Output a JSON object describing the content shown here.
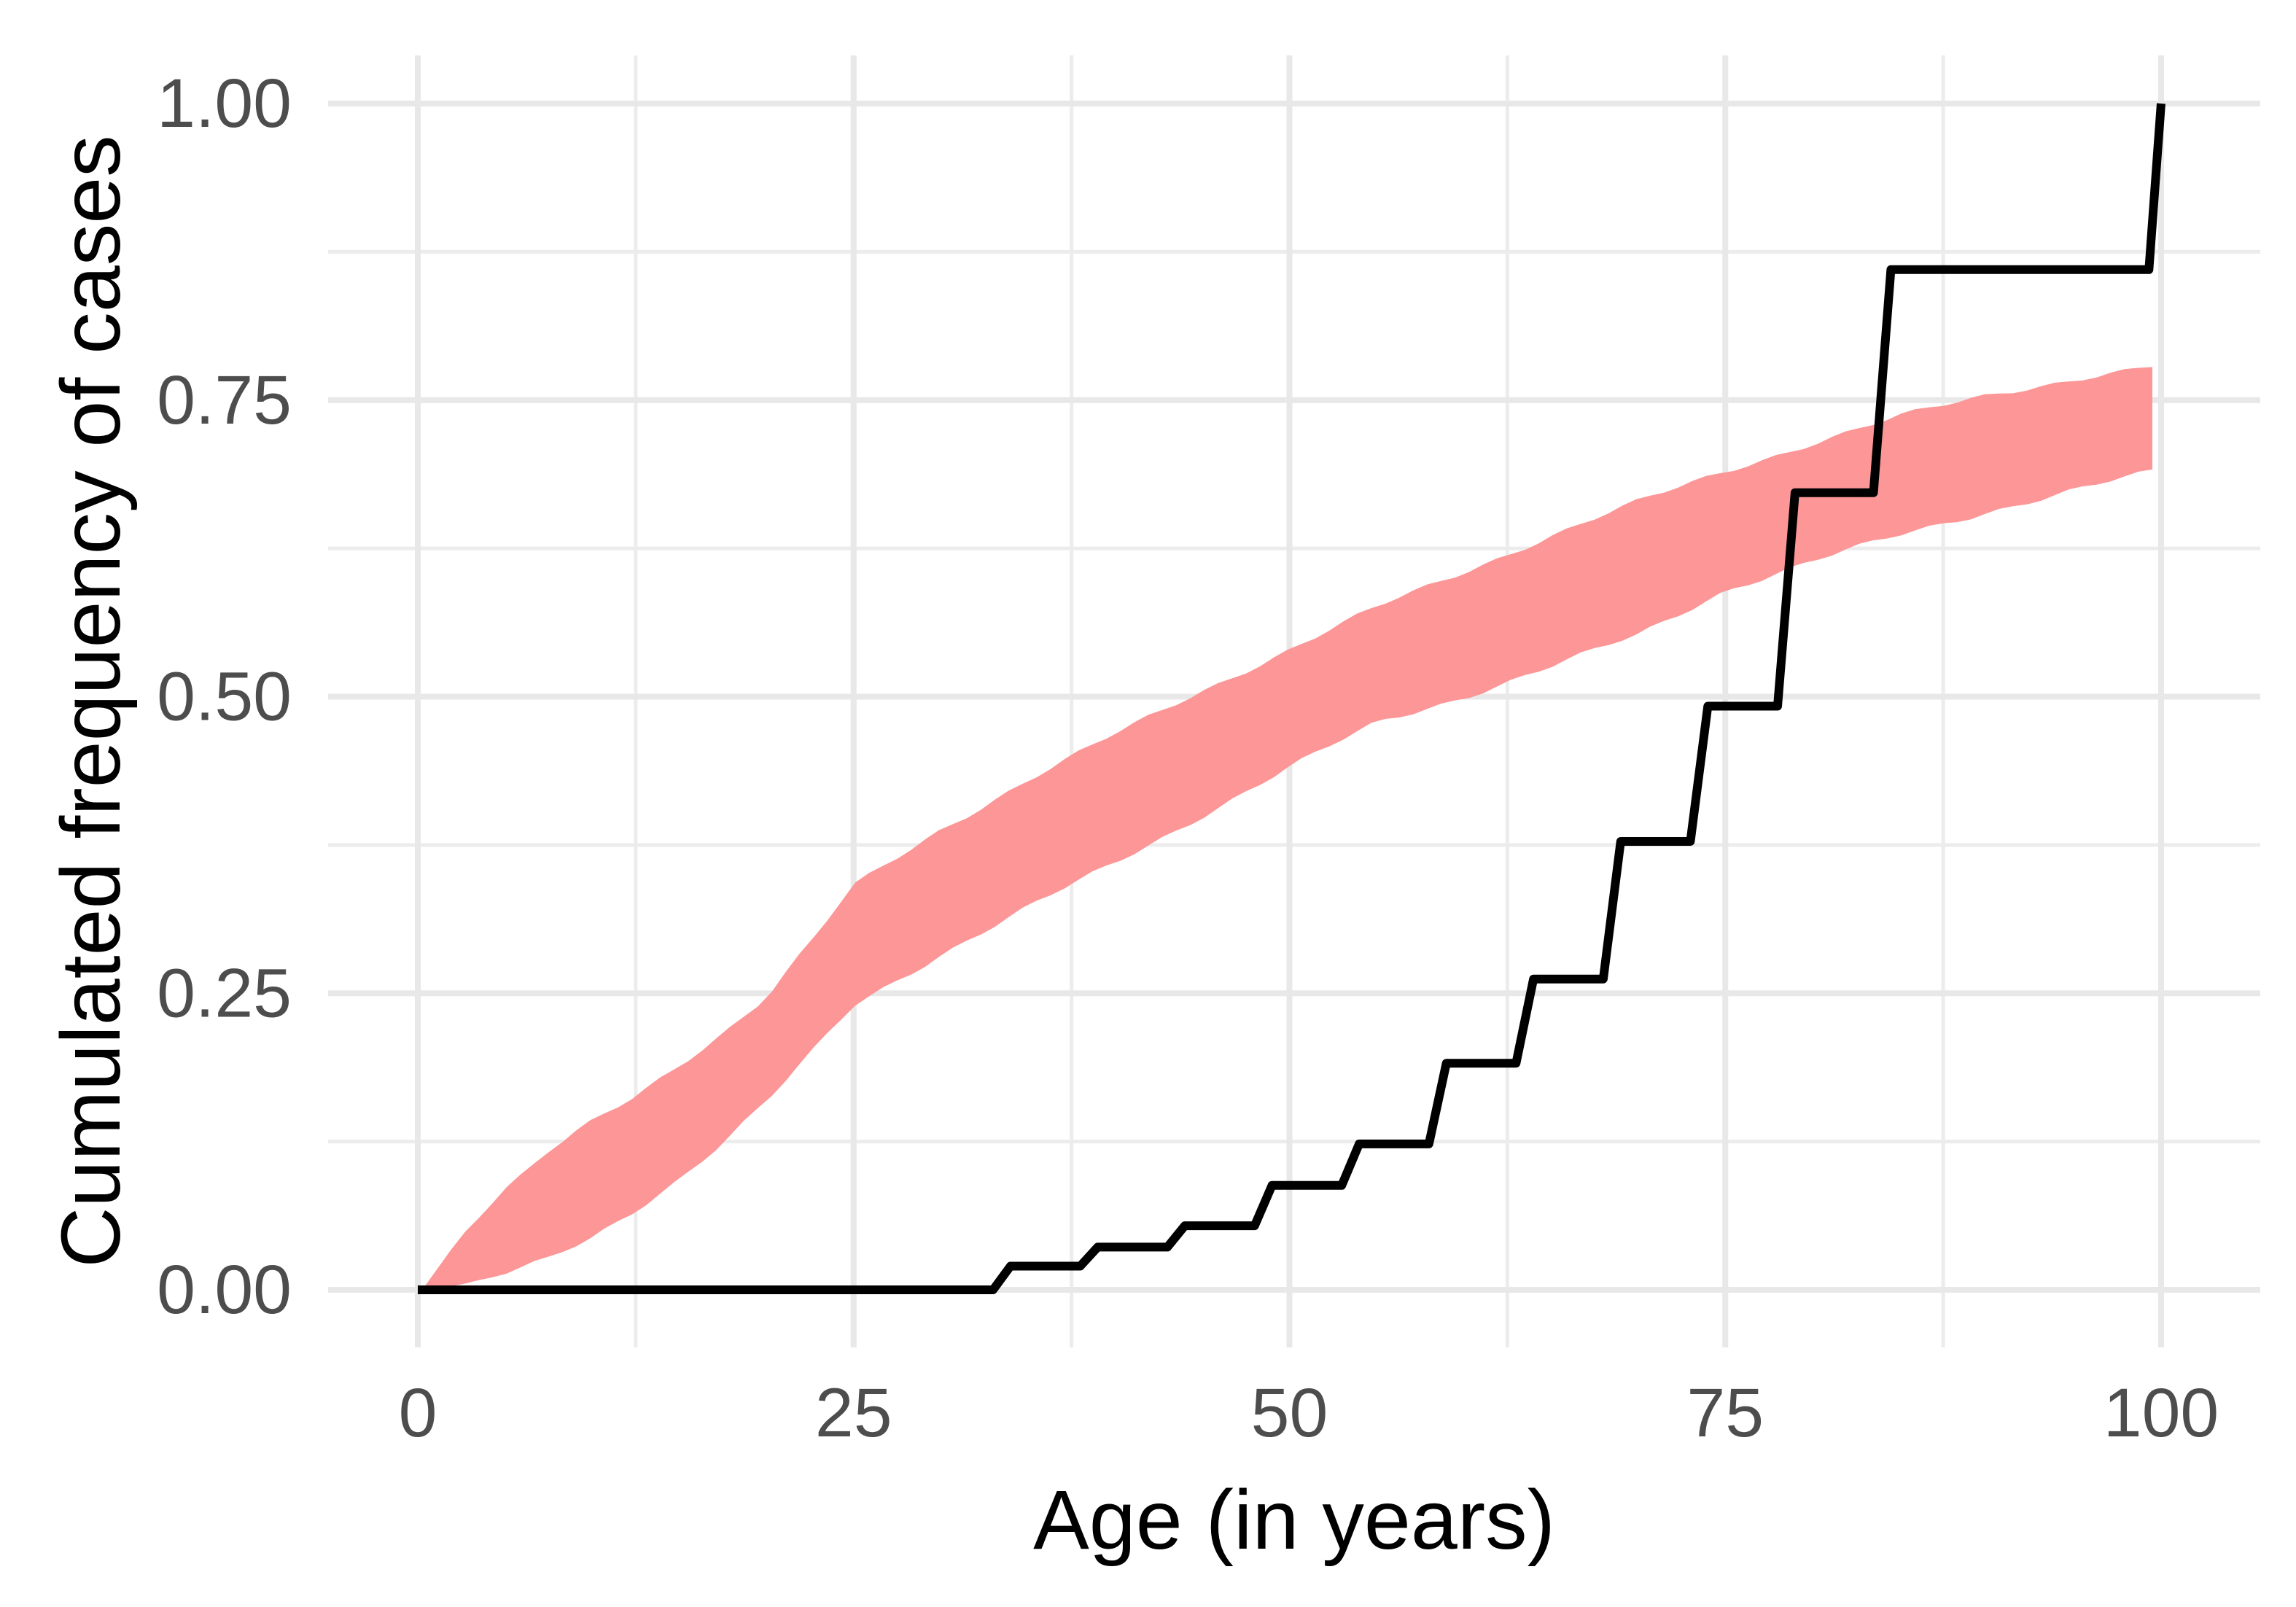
{
  "chart_data": {
    "type": "line",
    "title": "",
    "xlabel": "Age (in years)",
    "ylabel": "Cumulated frequency of cases",
    "xlim": [
      0,
      100
    ],
    "ylim": [
      0,
      1
    ],
    "grid": true,
    "legend": "none",
    "x_axis": {
      "ticks": [
        0,
        25,
        50,
        75,
        100
      ],
      "tick_labels": [
        "0",
        "25",
        "50",
        "75",
        "100"
      ],
      "minor_ticks": [
        12.5,
        37.5,
        62.5,
        87.5
      ]
    },
    "y_axis": {
      "ticks": [
        0,
        0.25,
        0.5,
        0.75,
        1
      ],
      "tick_labels": [
        "0.00",
        "0.25",
        "0.50",
        "0.75",
        "1.00"
      ],
      "minor_ticks": [
        0.125,
        0.375,
        0.625,
        0.875
      ]
    },
    "series": [
      {
        "name": "expected-cumulative-ribbon",
        "type": "ribbon",
        "color": "#FC9697",
        "points": [
          {
            "age": 0.3,
            "lower": 0.0,
            "upper": 0.001
          },
          {
            "age": 2.5,
            "lower": 0.004,
            "upper": 0.046
          },
          {
            "age": 5,
            "lower": 0.013,
            "upper": 0.085
          },
          {
            "age": 7.5,
            "lower": 0.026,
            "upper": 0.116
          },
          {
            "age": 10,
            "lower": 0.044,
            "upper": 0.141
          },
          {
            "age": 12.5,
            "lower": 0.068,
            "upper": 0.163
          },
          {
            "age": 15,
            "lower": 0.094,
            "upper": 0.19
          },
          {
            "age": 17.5,
            "lower": 0.124,
            "upper": 0.217
          },
          {
            "age": 20,
            "lower": 0.158,
            "upper": 0.247
          },
          {
            "age": 22.5,
            "lower": 0.198,
            "upper": 0.292
          },
          {
            "age": 25,
            "lower": 0.24,
            "upper": 0.34
          },
          {
            "age": 30,
            "lower": 0.283,
            "upper": 0.388
          },
          {
            "age": 35,
            "lower": 0.322,
            "upper": 0.43
          },
          {
            "age": 40,
            "lower": 0.36,
            "upper": 0.468
          },
          {
            "age": 45,
            "lower": 0.4,
            "upper": 0.505
          },
          {
            "age": 50,
            "lower": 0.44,
            "upper": 0.54
          },
          {
            "age": 55,
            "lower": 0.478,
            "upper": 0.575
          },
          {
            "age": 60,
            "lower": 0.5,
            "upper": 0.605
          },
          {
            "age": 65,
            "lower": 0.525,
            "upper": 0.636
          },
          {
            "age": 70,
            "lower": 0.552,
            "upper": 0.664
          },
          {
            "age": 75,
            "lower": 0.59,
            "upper": 0.69
          },
          {
            "age": 80,
            "lower": 0.614,
            "upper": 0.714
          },
          {
            "age": 85,
            "lower": 0.636,
            "upper": 0.736
          },
          {
            "age": 90,
            "lower": 0.656,
            "upper": 0.754
          },
          {
            "age": 95,
            "lower": 0.674,
            "upper": 0.768
          },
          {
            "age": 100,
            "lower": 0.691,
            "upper": 0.779
          }
        ]
      },
      {
        "name": "observed-ecdf-step",
        "type": "step-line",
        "color": "#000000",
        "points": [
          {
            "age": 0,
            "value": 0.0
          },
          {
            "age": 33,
            "value": 0.0
          },
          {
            "age": 34,
            "value": 0.02
          },
          {
            "age": 38,
            "value": 0.02
          },
          {
            "age": 39,
            "value": 0.036
          },
          {
            "age": 43,
            "value": 0.036
          },
          {
            "age": 44,
            "value": 0.054
          },
          {
            "age": 48,
            "value": 0.054
          },
          {
            "age": 49,
            "value": 0.088
          },
          {
            "age": 53,
            "value": 0.088
          },
          {
            "age": 54,
            "value": 0.123
          },
          {
            "age": 58,
            "value": 0.123
          },
          {
            "age": 59,
            "value": 0.191
          },
          {
            "age": 63,
            "value": 0.191
          },
          {
            "age": 64,
            "value": 0.262
          },
          {
            "age": 68,
            "value": 0.262
          },
          {
            "age": 69,
            "value": 0.378
          },
          {
            "age": 73,
            "value": 0.378
          },
          {
            "age": 74,
            "value": 0.492
          },
          {
            "age": 78,
            "value": 0.492
          },
          {
            "age": 79,
            "value": 0.672
          },
          {
            "age": 83.5,
            "value": 0.672
          },
          {
            "age": 84.5,
            "value": 0.86
          },
          {
            "age": 99.3,
            "value": 0.86
          },
          {
            "age": 100,
            "value": 1.0
          }
        ]
      }
    ],
    "colors": {
      "ribbon": "#FC9697",
      "step_line": "#000000",
      "grid_major": "#E8E8E8",
      "grid_minor": "#ECECEC",
      "tick_text": "#4D4D4D",
      "axis_title_text": "#000000",
      "background": "#FFFFFF"
    }
  }
}
